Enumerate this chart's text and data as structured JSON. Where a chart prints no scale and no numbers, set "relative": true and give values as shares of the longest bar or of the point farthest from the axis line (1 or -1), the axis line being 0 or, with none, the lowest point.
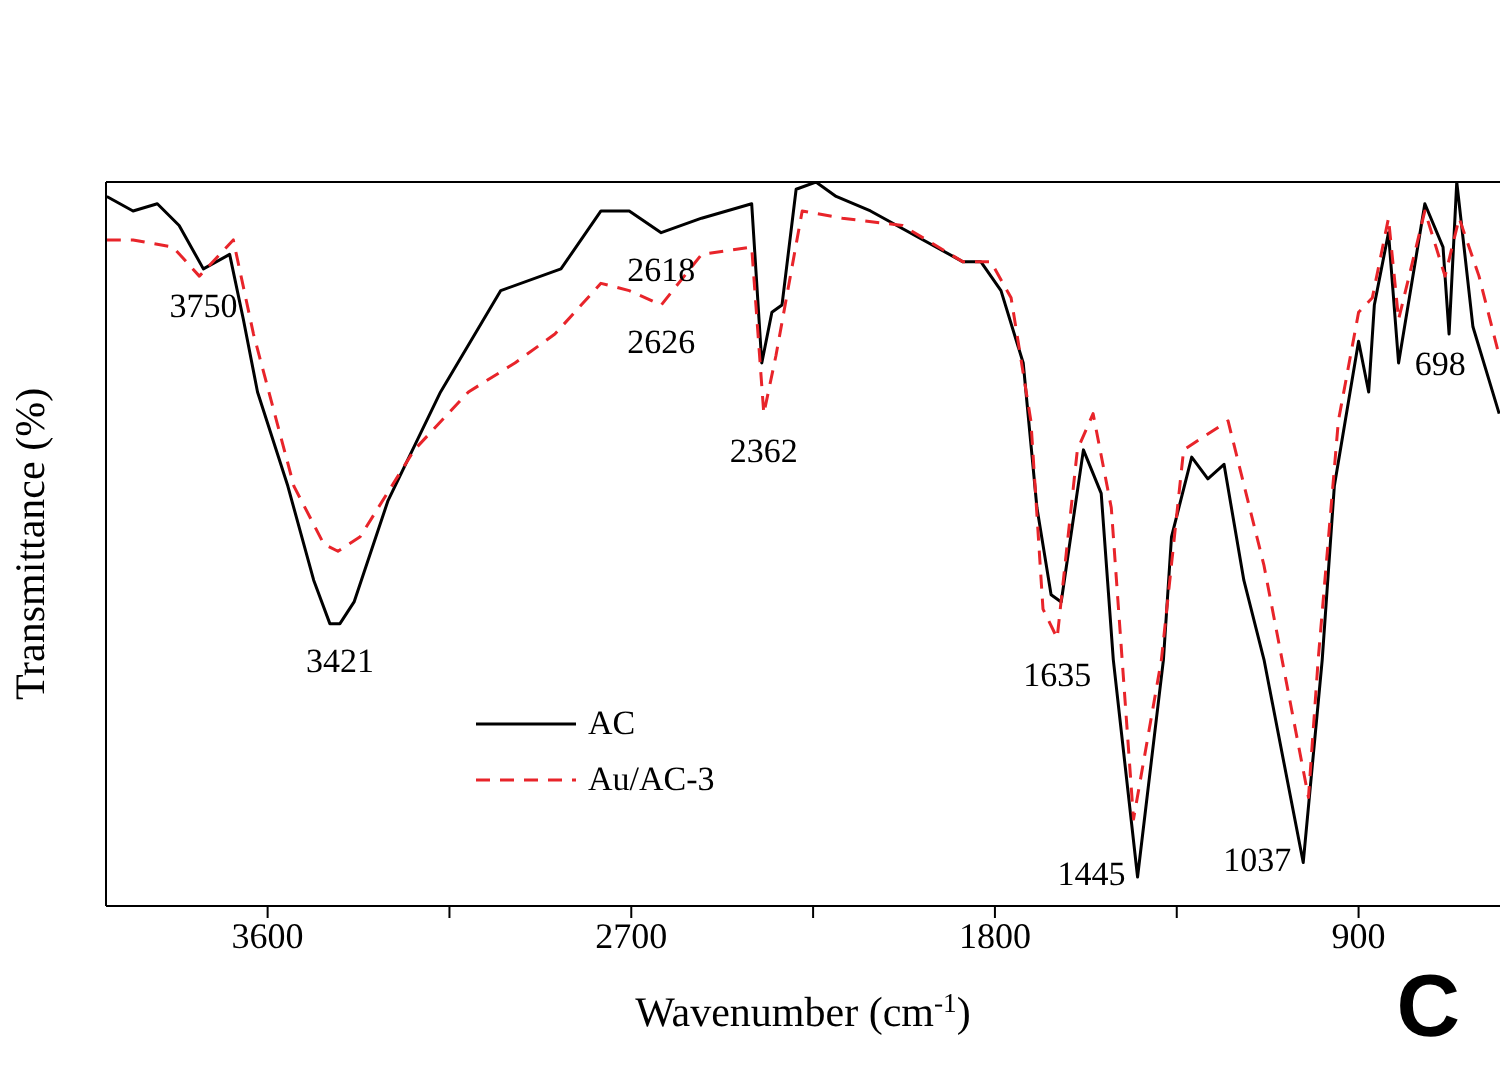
{
  "chart_data": {
    "type": "line",
    "relative": true,
    "xlabel": "Wavenumber (cm$^{-1}$)",
    "ylabel": "Transmittance (%)",
    "xlim": [
      4000,
      550
    ],
    "xticks": [
      3600,
      {
        "value": 3150,
        "label": null
      },
      2700,
      {
        "value": 2250,
        "label": null
      },
      1800,
      {
        "value": 1350,
        "label": null
      },
      900
    ],
    "legend": "bottom left",
    "series": [
      {
        "name": "AC",
        "color": "#000000",
        "line_style": "solid",
        "x": [
          3998,
          3933,
          3873,
          3819,
          3759,
          3694,
          3660,
          3625,
          3550,
          3486,
          3446,
          3421,
          3386,
          3302,
          3172,
          3023,
          2874,
          2775,
          2705,
          2626,
          2526,
          2402,
          2377,
          2352,
          2327,
          2292,
          2243,
          2193,
          2108,
          1880,
          1835,
          1785,
          1730,
          1696,
          1661,
          1636,
          1581,
          1537,
          1507,
          1447,
          1383,
          1363,
          1313,
          1273,
          1233,
          1184,
          1134,
          1037,
          990,
          960,
          900,
          875,
          861,
          826,
          801,
          736,
          691,
          676,
          657,
          617,
          552
        ],
        "values": [
          0.98,
          0.96,
          0.97,
          0.94,
          0.88,
          0.9,
          0.81,
          0.71,
          0.58,
          0.45,
          0.39,
          0.39,
          0.42,
          0.56,
          0.71,
          0.85,
          0.88,
          0.96,
          0.96,
          0.93,
          0.95,
          0.97,
          0.75,
          0.82,
          0.83,
          0.99,
          1.0,
          0.98,
          0.96,
          0.89,
          0.89,
          0.85,
          0.75,
          0.55,
          0.43,
          0.42,
          0.63,
          0.57,
          0.34,
          0.04,
          0.34,
          0.51,
          0.62,
          0.59,
          0.61,
          0.45,
          0.34,
          0.06,
          0.34,
          0.58,
          0.78,
          0.71,
          0.83,
          0.93,
          0.75,
          0.97,
          0.91,
          0.79,
          1.0,
          0.8,
          0.68
        ]
      },
      {
        "name": "Au/AC-3",
        "color": "#e8242a",
        "line_style": "dashed",
        "x": [
          3998,
          3933,
          3834,
          3769,
          3685,
          3635,
          3535,
          3461,
          3426,
          3371,
          3237,
          3103,
          2988,
          2889,
          2775,
          2705,
          2626,
          2526,
          2402,
          2372,
          2342,
          2277,
          2178,
          2029,
          1880,
          1810,
          1760,
          1711,
          1681,
          1646,
          1596,
          1557,
          1512,
          1457,
          1388,
          1333,
          1223,
          1134,
          1024,
          1000,
          950,
          900,
          866,
          826,
          801,
          736,
          686,
          651,
          602,
          552
        ],
        "values": [
          0.92,
          0.92,
          0.91,
          0.87,
          0.92,
          0.79,
          0.58,
          0.5,
          0.49,
          0.51,
          0.63,
          0.71,
          0.75,
          0.79,
          0.86,
          0.85,
          0.83,
          0.9,
          0.91,
          0.68,
          0.76,
          0.96,
          0.95,
          0.94,
          0.89,
          0.89,
          0.84,
          0.67,
          0.41,
          0.37,
          0.63,
          0.68,
          0.55,
          0.12,
          0.34,
          0.63,
          0.67,
          0.47,
          0.15,
          0.34,
          0.67,
          0.82,
          0.84,
          0.95,
          0.81,
          0.96,
          0.87,
          0.95,
          0.87,
          0.76
        ]
      }
    ],
    "annotations": [
      {
        "text": "3750",
        "x": 3759,
        "y": 0.88
      },
      {
        "text": "3421",
        "x": 3421,
        "y": 0.39
      },
      {
        "text": "2618",
        "x": 2626,
        "y": 0.93
      },
      {
        "text": "2626",
        "x": 2626,
        "y": 0.83
      },
      {
        "text": "2362",
        "x": 2372,
        "y": 0.68
      },
      {
        "text": "1635",
        "x": 1646,
        "y": 0.37
      },
      {
        "text": "1445",
        "x": 1447,
        "y": 0.04
      },
      {
        "text": "1037",
        "x": 1037,
        "y": 0.06
      },
      {
        "text": "698",
        "x": 698,
        "y": 0.8
      },
      "C"
    ]
  }
}
